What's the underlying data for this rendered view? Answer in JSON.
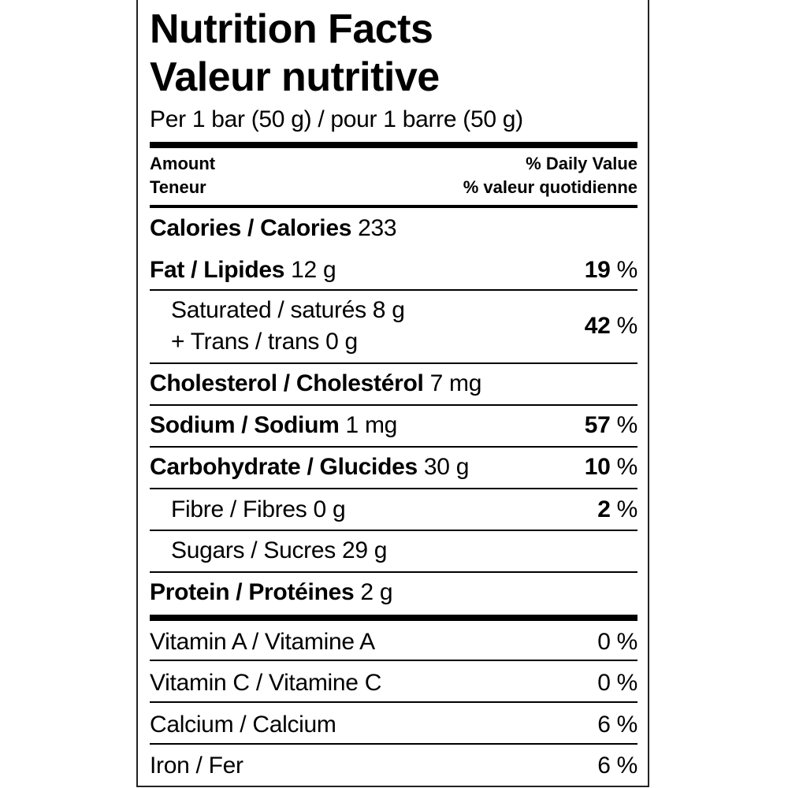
{
  "title_en": "Nutrition Facts",
  "title_fr": "Valeur nutritive",
  "serving": "Per 1 bar (50 g) / pour 1 barre (50 g)",
  "header": {
    "amount_en": "Amount",
    "amount_fr": "Teneur",
    "dv_en": "% Daily Value",
    "dv_fr": "% valeur quotidienne"
  },
  "calories": {
    "label": "Calories / Calories",
    "value": "233"
  },
  "fat": {
    "label": "Fat / Lipides",
    "amount": "12 g",
    "dv": "19",
    "unit": "%"
  },
  "saturated": {
    "label": "Saturated / saturés 8 g",
    "trans": "+ Trans / trans 0 g",
    "dv": "42",
    "unit": "%"
  },
  "cholesterol": {
    "label": "Cholesterol / Cholestérol",
    "amount": "7 mg"
  },
  "sodium": {
    "label": "Sodium / Sodium",
    "amount": "1 mg",
    "dv": "57",
    "unit": "%"
  },
  "carbohydrate": {
    "label": "Carbohydrate / Glucides",
    "amount": "30 g",
    "dv": "10",
    "unit": "%"
  },
  "fibre": {
    "label": "Fibre / Fibres 0 g",
    "dv": "2",
    "unit": "%"
  },
  "sugars": {
    "label": "Sugars / Sucres 29 g"
  },
  "protein": {
    "label": "Protein / Protéines",
    "amount": "2 g"
  },
  "vitamins": [
    {
      "label": "Vitamin A / Vitamine A",
      "dv": "0 %"
    },
    {
      "label": "Vitamin C / Vitamine C",
      "dv": "0 %"
    },
    {
      "label": "Calcium / Calcium",
      "dv": "6 %"
    },
    {
      "label": "Iron / Fer",
      "dv": "6 %"
    }
  ]
}
